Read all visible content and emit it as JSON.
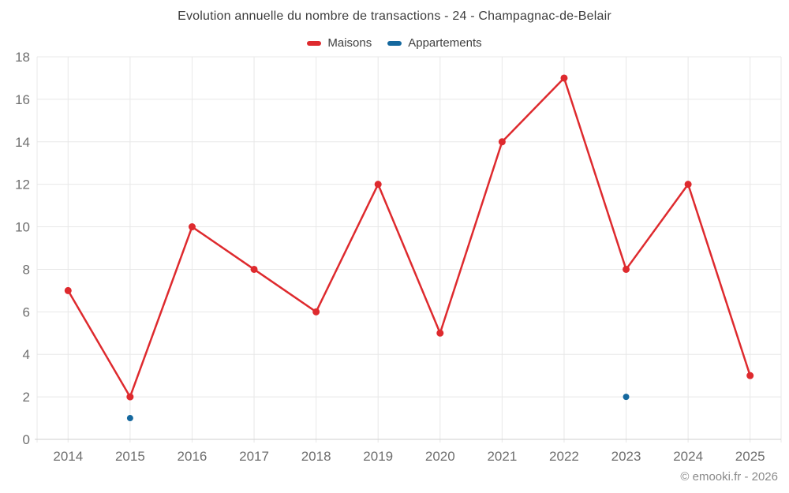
{
  "copyright": "© emooki.fr - 2026",
  "chart_data": {
    "type": "line",
    "title": "Evolution annuelle du nombre de transactions - 24 - Champagnac-de-Belair",
    "categories": [
      "2014",
      "2015",
      "2016",
      "2017",
      "2018",
      "2019",
      "2020",
      "2021",
      "2022",
      "2023",
      "2024",
      "2025"
    ],
    "series": [
      {
        "name": "Maisons",
        "color": "#de2a2e",
        "marker_radius": 4.5,
        "values": [
          7,
          2,
          10,
          8,
          6,
          12,
          5,
          14,
          17,
          8,
          12,
          3
        ]
      },
      {
        "name": "Appartements",
        "color": "#15689e",
        "marker_radius": 4,
        "values": [
          null,
          1,
          null,
          null,
          null,
          null,
          null,
          null,
          null,
          2,
          null,
          null
        ]
      }
    ],
    "ylim": [
      0,
      18
    ],
    "ytick_step": 2,
    "grid": true,
    "legend_position": "top",
    "xlabel": "",
    "ylabel": ""
  },
  "colors": {
    "maisons": "#de2a2e",
    "appartements": "#15689e",
    "axis_text": "#6e6e6e",
    "title_text": "#3d3d3d",
    "copyright_text": "#8a8a8a"
  }
}
